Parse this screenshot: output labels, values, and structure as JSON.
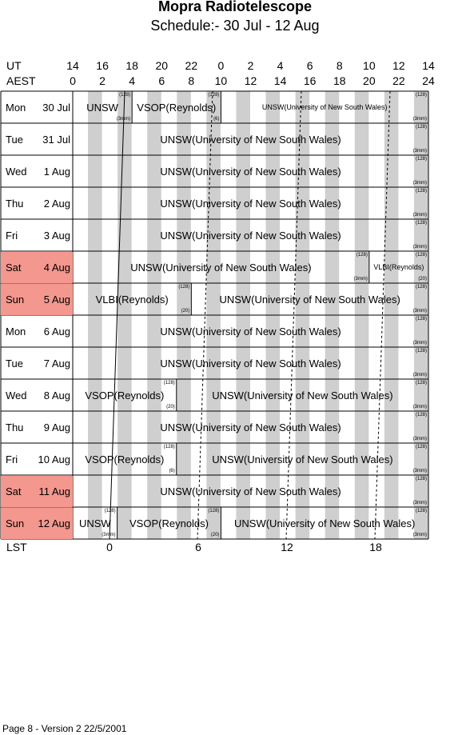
{
  "title": "Mopra Radiotelescope",
  "subtitle": "Schedule:- 30 Jul - 12 Aug",
  "header": {
    "ut_label": "UT",
    "aest_label": "AEST",
    "ut_ticks": [
      "14",
      "16",
      "18",
      "20",
      "22",
      "0",
      "2",
      "4",
      "6",
      "8",
      "10",
      "12",
      "14"
    ],
    "aest_ticks": [
      "0",
      "2",
      "4",
      "6",
      "8",
      "10",
      "12",
      "14",
      "16",
      "18",
      "20",
      "22",
      "24"
    ]
  },
  "days": [
    {
      "day": "Mon",
      "date": "30 Jul",
      "weekend": false,
      "blocks": [
        {
          "start": 0,
          "end": 4,
          "name": "UNSW",
          "tr": "(128)",
          "br": "(3mm)"
        },
        {
          "start": 4,
          "end": 10,
          "name": "VSOP(Reynolds)",
          "tr": "(128)",
          "br": "(6)"
        },
        {
          "start": 10,
          "end": 24,
          "name": "UNSW(University of New South Wales)",
          "tr": "(128)",
          "br": "(3mm)",
          "small": true
        }
      ]
    },
    {
      "day": "Tue",
      "date": "31 Jul",
      "weekend": false,
      "blocks": [
        {
          "start": 0,
          "end": 24,
          "name": "UNSW(University of New South Wales)",
          "tr": "(128)",
          "br": "(3mm)"
        }
      ]
    },
    {
      "day": "Wed",
      "date": "1 Aug",
      "weekend": false,
      "blocks": [
        {
          "start": 0,
          "end": 24,
          "name": "UNSW(University of New South Wales)",
          "tr": "(128)",
          "br": "(3mm)"
        }
      ]
    },
    {
      "day": "Thu",
      "date": "2 Aug",
      "weekend": false,
      "blocks": [
        {
          "start": 0,
          "end": 24,
          "name": "UNSW(University of New South Wales)",
          "tr": "(128)",
          "br": "(3mm)"
        }
      ]
    },
    {
      "day": "Fri",
      "date": "3 Aug",
      "weekend": false,
      "blocks": [
        {
          "start": 0,
          "end": 24,
          "name": "UNSW(University of New South Wales)",
          "tr": "(128)",
          "br": "(3mm)"
        }
      ]
    },
    {
      "day": "Sat",
      "date": "4 Aug",
      "weekend": true,
      "blocks": [
        {
          "start": 0,
          "end": 20,
          "name": "UNSW(University of New South Wales)",
          "tr": "(128)",
          "br": "(3mm)"
        },
        {
          "start": 20,
          "end": 24,
          "name": "VLBI(Reynolds)",
          "tr": "(128)",
          "br": "(20)",
          "small": true
        }
      ]
    },
    {
      "day": "Sun",
      "date": "5 Aug",
      "weekend": true,
      "blocks": [
        {
          "start": 0,
          "end": 8,
          "name": "VLBI(Reynolds)",
          "tr": "(128)",
          "br": "(20)"
        },
        {
          "start": 8,
          "end": 24,
          "name": "UNSW(University of New South Wales)",
          "tr": "(128)",
          "br": "(3mm)"
        }
      ]
    },
    {
      "day": "Mon",
      "date": "6 Aug",
      "weekend": false,
      "blocks": [
        {
          "start": 0,
          "end": 24,
          "name": "UNSW(University of New South Wales)",
          "tr": "(128)",
          "br": "(3mm)"
        }
      ]
    },
    {
      "day": "Tue",
      "date": "7 Aug",
      "weekend": false,
      "blocks": [
        {
          "start": 0,
          "end": 24,
          "name": "UNSW(University of New South Wales)",
          "tr": "(128)",
          "br": "(3mm)"
        }
      ]
    },
    {
      "day": "Wed",
      "date": "8 Aug",
      "weekend": false,
      "blocks": [
        {
          "start": 0,
          "end": 7,
          "name": "VSOP(Reynolds)",
          "tr": "(128)",
          "br": "(20)"
        },
        {
          "start": 7,
          "end": 24,
          "name": "UNSW(University of New South Wales)",
          "tr": "(128)",
          "br": "(3mm)"
        }
      ]
    },
    {
      "day": "Thu",
      "date": "9 Aug",
      "weekend": false,
      "blocks": [
        {
          "start": 0,
          "end": 24,
          "name": "UNSW(University of New South Wales)",
          "tr": "(128)",
          "br": "(3mm)"
        }
      ]
    },
    {
      "day": "Fri",
      "date": "10 Aug",
      "weekend": false,
      "blocks": [
        {
          "start": 0,
          "end": 7,
          "name": "VSOP(Reynolds)",
          "tr": "(128)",
          "br": "(6)"
        },
        {
          "start": 7,
          "end": 24,
          "name": "UNSW(University of New South Wales)",
          "tr": "(128)",
          "br": "(3mm)"
        }
      ]
    },
    {
      "day": "Sat",
      "date": "11 Aug",
      "weekend": true,
      "blocks": [
        {
          "start": 0,
          "end": 24,
          "name": "UNSW(University of New South Wales)",
          "tr": "(128)",
          "br": "(3mm)"
        }
      ]
    },
    {
      "day": "Sun",
      "date": "12 Aug",
      "weekend": true,
      "blocks": [
        {
          "start": 0,
          "end": 3,
          "name": "UNSW",
          "tr": "(128)",
          "br": "(3mm)"
        },
        {
          "start": 3,
          "end": 10,
          "name": "VSOP(Reynolds)",
          "tr": "(128)",
          "br": "(20)"
        },
        {
          "start": 10,
          "end": 24,
          "name": "UNSW(University of New South Wales)",
          "tr": "(128)",
          "br": "(3mm)"
        }
      ]
    }
  ],
  "lst": {
    "label": "LST",
    "ticks": [
      "0",
      "6",
      "12",
      "18"
    ]
  },
  "footer": "Page 8 - Version 2  22/5/2001"
}
